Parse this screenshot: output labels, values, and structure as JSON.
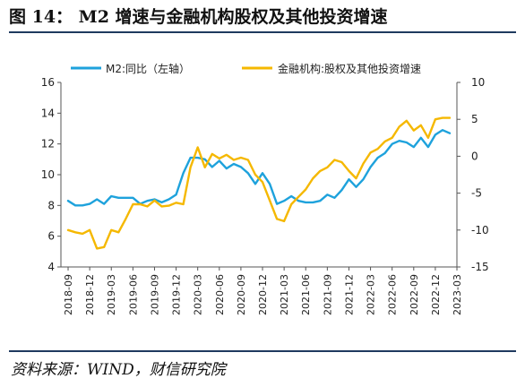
{
  "figure_title": "图 14： M2 增速与金融机构股权及其他投资增速",
  "source_note": "资料来源：WIND，财信研究院",
  "chart_data": {
    "type": "line",
    "title": "",
    "xlabel": "",
    "ylabel_left": "",
    "ylabel_right": "",
    "legend_position": "top",
    "grid": false,
    "x_ticks": [
      "2018-09",
      "2018-12",
      "2019-03",
      "2019-06",
      "2019-09",
      "2019-12",
      "2020-03",
      "2020-06",
      "2020-09",
      "2020-12",
      "2021-03",
      "2021-06",
      "2021-09",
      "2021-12",
      "2022-03",
      "2022-06",
      "2022-09",
      "2022-12",
      "2023-03"
    ],
    "y_left": {
      "min": 4,
      "max": 16,
      "ticks": [
        "4",
        "6",
        "8",
        "10",
        "12",
        "14",
        "16"
      ]
    },
    "y_right": {
      "min": -15,
      "max": 10,
      "ticks": [
        "-15",
        "-10",
        "-5",
        "0",
        "5",
        "10"
      ]
    },
    "series": [
      {
        "name": "M2:同比（左轴）",
        "axis": "left",
        "color": "#1ea2dc",
        "values": [
          8.3,
          8.0,
          8.0,
          8.1,
          8.4,
          8.1,
          8.6,
          8.5,
          8.5,
          8.5,
          8.1,
          8.3,
          8.4,
          8.2,
          8.4,
          8.7,
          10.1,
          11.1,
          11.1,
          11.0,
          10.5,
          10.9,
          10.4,
          10.7,
          10.5,
          10.1,
          9.4,
          10.1,
          9.4,
          8.1,
          8.3,
          8.6,
          8.3,
          8.2,
          8.2,
          8.3,
          8.7,
          8.5,
          9.0,
          9.7,
          9.2,
          9.7,
          10.5,
          11.1,
          11.4,
          12.0,
          12.2,
          12.1,
          11.8,
          12.4,
          11.8,
          12.6,
          12.9,
          12.7
        ]
      },
      {
        "name": "金融机构:股权及其他投资增速",
        "axis": "right",
        "color": "#f5b800",
        "values": [
          -10.0,
          -10.3,
          -10.5,
          -10.0,
          -12.5,
          -12.3,
          -10.0,
          -10.3,
          -8.5,
          -6.5,
          -6.5,
          -6.8,
          -6.0,
          -6.8,
          -6.7,
          -6.3,
          -6.5,
          -1.5,
          1.2,
          -1.5,
          0.3,
          -0.3,
          0.2,
          -0.5,
          -0.2,
          -0.5,
          -2.5,
          -3.5,
          -6.0,
          -8.5,
          -8.8,
          -6.5,
          -5.5,
          -4.5,
          -3.0,
          -2.0,
          -1.5,
          -0.5,
          -0.8,
          -2.0,
          -3.0,
          -1.0,
          0.5,
          1.0,
          2.0,
          2.5,
          4.0,
          4.8,
          3.5,
          4.2,
          2.5,
          5.0,
          5.2,
          5.2
        ]
      }
    ]
  }
}
